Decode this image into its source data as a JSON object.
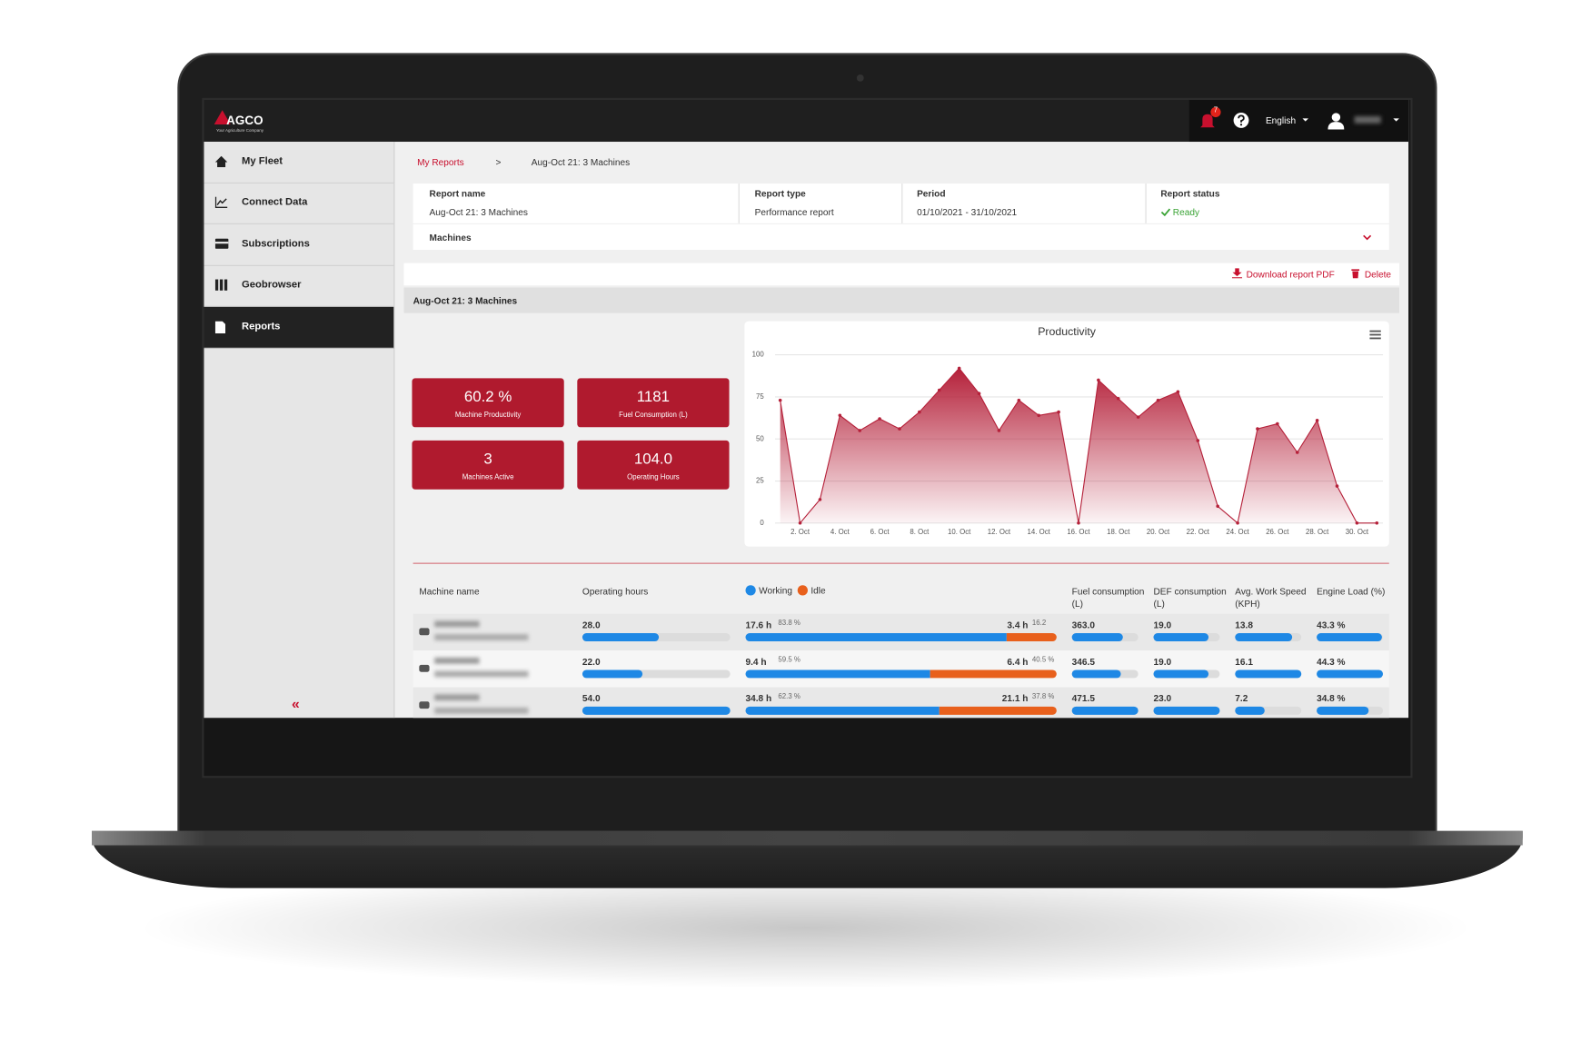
{
  "header": {
    "logo": "AGCO",
    "logo_tagline": "Your Agriculture Company",
    "notifications": "7",
    "language": "English"
  },
  "sidebar": {
    "items": [
      "My Fleet",
      "Connect Data",
      "Subscriptions",
      "Geobrowser",
      "Reports"
    ],
    "collapse": "«"
  },
  "breadcrumb": [
    "My Reports",
    ">",
    "Aug-Oct 21: 3 Machines"
  ],
  "report_info": {
    "fields": [
      {
        "label": "Report name",
        "value": "Aug-Oct 21: 3 Machines"
      },
      {
        "label": "Report type",
        "value": "Performance report"
      },
      {
        "label": "Period",
        "value": "01/10/2021 - 31/10/2021"
      },
      {
        "label": "Report status",
        "value": "Ready"
      }
    ],
    "machines": "Machines"
  },
  "actions": {
    "download": "Download report PDF",
    "delete": "Delete"
  },
  "section_title": "Aug-Oct 21: 3 Machines",
  "kpis": [
    {
      "value": "60.2 %",
      "label": "Machine Productivity"
    },
    {
      "value": "1181",
      "label": "Fuel Consumption (L)"
    },
    {
      "value": "3",
      "label": "Machines Active"
    },
    {
      "value": "104.0",
      "label": "Operating Hours"
    }
  ],
  "chart_data": {
    "type": "area",
    "title": "Productivity",
    "color": "#b5213a",
    "grid": true,
    "categories": [
      null,
      "2. Oct",
      null,
      "4. Oct",
      null,
      "6. Oct",
      null,
      "8. Oct",
      null,
      "10. Oct",
      null,
      "12. Oct",
      null,
      "14. Oct",
      null,
      "16. Oct",
      null,
      "18. Oct",
      null,
      "20. Oct",
      null,
      "22. Oct",
      null,
      "24. Oct",
      null,
      "26. Oct",
      null,
      "28. Oct",
      null,
      "30. Oct",
      null
    ],
    "values": [
      73,
      0,
      14,
      64,
      55,
      62,
      56,
      66,
      79,
      92,
      77,
      55,
      73,
      64,
      66,
      0,
      85,
      74,
      63,
      73,
      78,
      49,
      10,
      0,
      56,
      59,
      42,
      61,
      22,
      0,
      0
    ],
    "ylim": [
      0,
      100
    ],
    "yticks": [
      0,
      25,
      50,
      75,
      100
    ]
  },
  "table": {
    "headers": [
      "Machine name",
      "Operating hours",
      "Fuel consumption (L)",
      "DEF consumption (L)",
      "Avg. Work Speed (KPH)",
      "Engine Load (%)"
    ],
    "legend": [
      "Working",
      "Idle"
    ],
    "rows": [
      {
        "operating_hours": "28.0",
        "working_hours": "17.6 h",
        "working_pct": "83.8 %",
        "idle_hours": "3.4 h",
        "idle_pct": "16.2",
        "fuel": "363.0",
        "def": "19.0",
        "speed": "13.8",
        "engine_load": "43.3 %"
      },
      {
        "operating_hours": "22.0",
        "working_hours": "9.4 h",
        "working_pct": "59.5 %",
        "idle_hours": "6.4 h",
        "idle_pct": "40.5 %",
        "fuel": "346.5",
        "def": "19.0",
        "speed": "16.1",
        "engine_load": "44.3 %"
      },
      {
        "operating_hours": "54.0",
        "working_hours": "34.8 h",
        "working_pct": "62.3 %",
        "idle_hours": "21.1 h",
        "idle_pct": "37.8 %",
        "fuel": "471.5",
        "def": "23.0",
        "speed": "7.2",
        "engine_load": "34.8 %"
      }
    ]
  }
}
